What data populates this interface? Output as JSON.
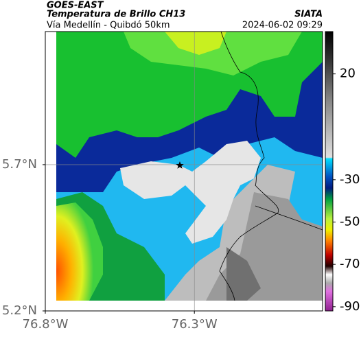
{
  "header": {
    "title": "GOES-EAST",
    "subtitle": "Temperatura de Brillo CH13",
    "source": "SIATA",
    "location": "Vía Medellín - Quibdó 50km",
    "timestamp": "2024-06-02 09:29"
  },
  "map": {
    "xlim": [
      -76.8,
      -75.87
    ],
    "ylim": [
      5.2,
      6.155
    ],
    "xticks": [
      {
        "value": -76.8,
        "label": "76.8°W"
      },
      {
        "value": -76.3,
        "label": "76.3°W"
      }
    ],
    "yticks": [
      {
        "value": 5.2,
        "label": "5.2°N"
      },
      {
        "value": 5.7,
        "label": "5.7°N"
      }
    ],
    "grid": true
  },
  "colorbar": {
    "lim": [
      -92,
      40
    ],
    "ticks": [
      20,
      -30,
      -50,
      -70,
      -90
    ]
  }
}
